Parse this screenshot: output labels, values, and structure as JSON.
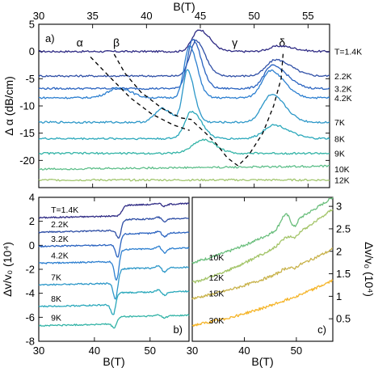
{
  "chart_data": [
    {
      "id": "a",
      "type": "line",
      "panel_label": "a)",
      "xlabel_top": "B(T)",
      "ylabel": "Δ α (dB/cm)",
      "xlim": [
        30,
        57
      ],
      "ylim": [
        -25,
        5
      ],
      "xticks": [
        "30",
        "35",
        "40",
        "45",
        "50",
        "55"
      ],
      "yticks": [
        "5",
        "0",
        "-5",
        "-10",
        "-15",
        "-20"
      ],
      "peak_labels": [
        {
          "text": "α",
          "x": 33.8,
          "y": 1.5
        },
        {
          "text": "β",
          "x": 37.2,
          "y": 1.5
        },
        {
          "text": "γ",
          "x": 48.2,
          "y": 1.5
        },
        {
          "text": "δ",
          "x": 52.6,
          "y": 1.5
        }
      ],
      "series": [
        {
          "name": "T=1.4K",
          "color": "#2e2a84",
          "offset": 0,
          "peaks": [
            [
              44.9,
              4.0,
              0.9,
              1.4
            ],
            [
              52.3,
              1.0,
              1.2,
              2.0
            ]
          ],
          "slope": 0.0
        },
        {
          "name": "2.2K",
          "color": "#2f4fa6",
          "offset": -4.5,
          "peaks": [
            [
              44.6,
              6.5,
              0.8,
              1.2
            ],
            [
              52.0,
              3.0,
              1.2,
              2.0
            ]
          ],
          "slope": 0.0
        },
        {
          "name": "3.2K",
          "color": "#2a63c0",
          "offset": -6.8,
          "peaks": [
            [
              44.3,
              9.0,
              0.7,
              1.1
            ],
            [
              51.7,
              4.2,
              1.1,
              1.9
            ]
          ],
          "slope": 0.0
        },
        {
          "name": "4.2K",
          "color": "#2c7fd0",
          "offset": -8.5,
          "peaks": [
            [
              37.5,
              1.8,
              1.5,
              1.5
            ],
            [
              44.0,
              9.5,
              0.7,
              1.0
            ],
            [
              51.5,
              5.0,
              1.1,
              1.8
            ]
          ],
          "slope": 0.0
        },
        {
          "name": "7K",
          "color": "#2c97c8",
          "offset": -13.0,
          "peaks": [
            [
              41.5,
              2.5,
              1.0,
              1.2
            ],
            [
              43.8,
              9.5,
              0.6,
              0.9
            ],
            [
              51.6,
              5.0,
              1.2,
              1.8
            ]
          ],
          "slope": 0.0
        },
        {
          "name": "8K",
          "color": "#2aa8bb",
          "offset": -16.0,
          "peaks": [
            [
              44.2,
              5.0,
              0.9,
              1.3
            ],
            [
              51.8,
              2.5,
              1.3,
              2.0
            ]
          ],
          "slope": 0.0
        },
        {
          "name": "9K",
          "color": "#32b3a6",
          "offset": -18.7,
          "peaks": [
            [
              45.3,
              2.5,
              1.4,
              1.6
            ]
          ],
          "slope": 0.0
        },
        {
          "name": "10K",
          "color": "#5ebf8a",
          "offset": -21.6,
          "peaks": [],
          "slope": 0.02
        },
        {
          "name": "12K",
          "color": "#a2c66e",
          "offset": -23.6,
          "peaks": [],
          "slope": 0.0
        }
      ],
      "dashed_lines": [
        [
          [
            34.8,
            -1.0
          ],
          [
            36.5,
            -4.5
          ],
          [
            38.5,
            -8.5
          ],
          [
            40.5,
            -11.5
          ],
          [
            42.5,
            -13.5
          ],
          [
            44.0,
            -14.5
          ]
        ],
        [
          [
            37.0,
            -0.5
          ],
          [
            38.0,
            -4.0
          ],
          [
            39.5,
            -7.5
          ],
          [
            41.5,
            -10.5
          ],
          [
            43.2,
            -12.2
          ],
          [
            44.2,
            -12.5
          ]
        ],
        [
          [
            44.4,
            -13.0
          ],
          [
            45.5,
            -15.0
          ],
          [
            46.5,
            -17.0
          ],
          [
            47.5,
            -19.5
          ],
          [
            48.5,
            -21.0
          ],
          [
            49.5,
            -19.0
          ],
          [
            50.8,
            -15.0
          ],
          [
            51.8,
            -10.0
          ],
          [
            52.5,
            -5.0
          ],
          [
            52.7,
            0.0
          ]
        ]
      ]
    },
    {
      "id": "b",
      "type": "line",
      "panel_label": "b)",
      "xlabel": "B(T)",
      "ylabel": "Δv/v₀ (10⁴)",
      "xlim": [
        30,
        57
      ],
      "ylim": [
        -8,
        4
      ],
      "xticks": [
        "30",
        "40",
        "50"
      ],
      "yticks": [
        "4",
        "2",
        "0",
        "-2",
        "-4",
        "-6",
        "-8"
      ],
      "series": [
        {
          "name": "T=1.4K",
          "color": "#2e2a84",
          "offset": 2.3,
          "step_pos": 45.0,
          "step_amp": 0.9,
          "dip": 0.0,
          "dip2": 0.3,
          "slope": 0.01
        },
        {
          "name": "2.2K",
          "color": "#2f4fa6",
          "offset": 1.1,
          "step_pos": 44.8,
          "step_amp": 0.9,
          "dip": 0.8,
          "dip2": 0.4,
          "slope": 0.01
        },
        {
          "name": "3.2K",
          "color": "#2a63c0",
          "offset": -0.1,
          "step_pos": 44.6,
          "step_amp": 0.9,
          "dip": 1.2,
          "dip2": 0.5,
          "slope": 0.01
        },
        {
          "name": "4.2K",
          "color": "#2c7fd0",
          "offset": -1.5,
          "step_pos": 44.4,
          "step_amp": 1.0,
          "dip": 1.7,
          "dip2": 0.6,
          "slope": 0.01
        },
        {
          "name": "7K",
          "color": "#2c97c8",
          "offset": -3.3,
          "step_pos": 44.2,
          "step_amp": 1.2,
          "dip": 1.5,
          "dip2": 0.6,
          "slope": 0.01
        },
        {
          "name": "8K",
          "color": "#2aa8bb",
          "offset": -5.1,
          "step_pos": 43.8,
          "step_amp": 1.0,
          "dip": 1.0,
          "dip2": 0.5,
          "slope": 0.01
        },
        {
          "name": "9K",
          "color": "#32b3a6",
          "offset": -6.7,
          "step_pos": 44.0,
          "step_amp": 0.6,
          "dip": 0.4,
          "dip2": 0.3,
          "slope": 0.01
        }
      ]
    },
    {
      "id": "c",
      "type": "line",
      "panel_label": "c)",
      "xlabel": "B(T)",
      "ylabel": "Δv/v₀ (10⁴)",
      "xlim": [
        30,
        57
      ],
      "ylim": [
        0,
        3.2
      ],
      "xticks": [
        "30",
        "40",
        "50"
      ],
      "yticks": [
        "3",
        "2.5",
        "2",
        "1.5",
        "1",
        "0.5"
      ],
      "series": [
        {
          "name": "10K",
          "color": "#6cbf7e",
          "start": 1.75,
          "end": 3.2,
          "bump": 0.25
        },
        {
          "name": "12K",
          "color": "#a3c468",
          "start": 1.3,
          "end": 2.95,
          "bump": 0.08
        },
        {
          "name": "15K",
          "color": "#c8b24a",
          "start": 0.95,
          "end": 2.05,
          "bump": 0.05
        },
        {
          "name": "30K",
          "color": "#f5b52a",
          "start": 0.35,
          "end": 1.35,
          "bump": 0.0
        }
      ]
    }
  ]
}
